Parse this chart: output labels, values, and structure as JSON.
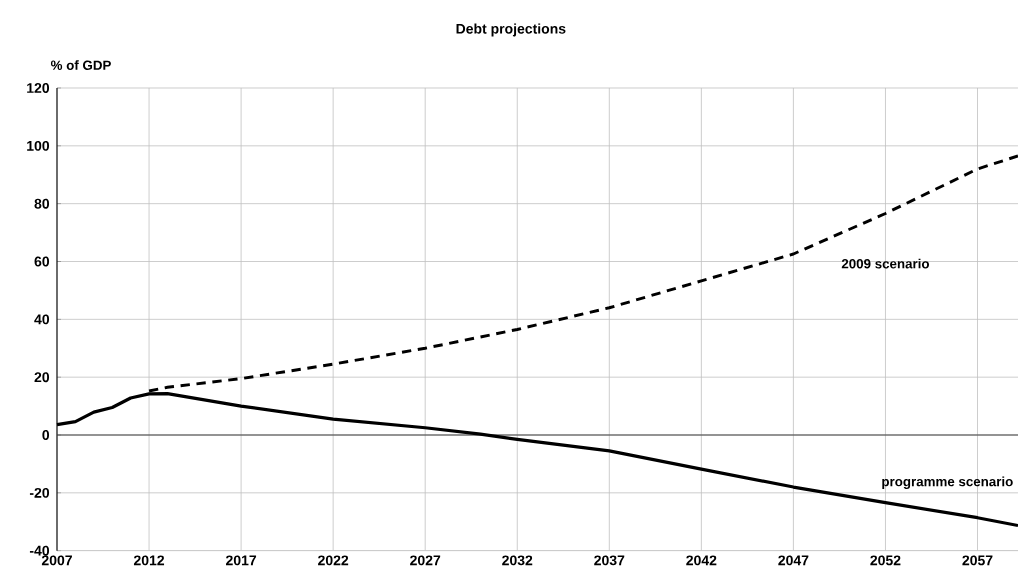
{
  "chart_data": {
    "type": "line",
    "title": "Debt projections",
    "ylabel": "% of GDP",
    "xlim": [
      2007,
      2059.2
    ],
    "ylim": [
      -40,
      120
    ],
    "xticks": [
      2007,
      2012,
      2017,
      2022,
      2027,
      2032,
      2037,
      2042,
      2047,
      2052,
      2057
    ],
    "yticks": [
      -40,
      -20,
      0,
      20,
      40,
      60,
      80,
      100,
      120
    ],
    "grid": true,
    "ref_lines": [
      {
        "axis": "y",
        "value": 0,
        "color": "#404040"
      }
    ],
    "series": [
      {
        "name": "2009 scenario",
        "color": "#000000",
        "line_style": "dashed",
        "x": [
          2012,
          2013,
          2017,
          2022,
          2027,
          2032,
          2037,
          2042,
          2047,
          2052,
          2057,
          2059.2
        ],
        "values": [
          15.2,
          16.5,
          19.5,
          24.5,
          30,
          36.5,
          44,
          53.3,
          62.6,
          76.6,
          92,
          96.5
        ]
      },
      {
        "name": "programme scenario",
        "color": "#000000",
        "line_style": "solid",
        "x": [
          2007,
          2008,
          2009,
          2010,
          2011,
          2012,
          2013,
          2017,
          2022,
          2027,
          2030,
          2032,
          2037,
          2042,
          2047,
          2052,
          2057,
          2059.2
        ],
        "values": [
          3.6,
          4.6,
          7.9,
          9.5,
          12.8,
          14.2,
          14.3,
          10,
          5.5,
          2.5,
          0.3,
          -1.5,
          -5.5,
          -11.8,
          -18,
          -23.4,
          -28.6,
          -31.3
        ]
      }
    ]
  }
}
